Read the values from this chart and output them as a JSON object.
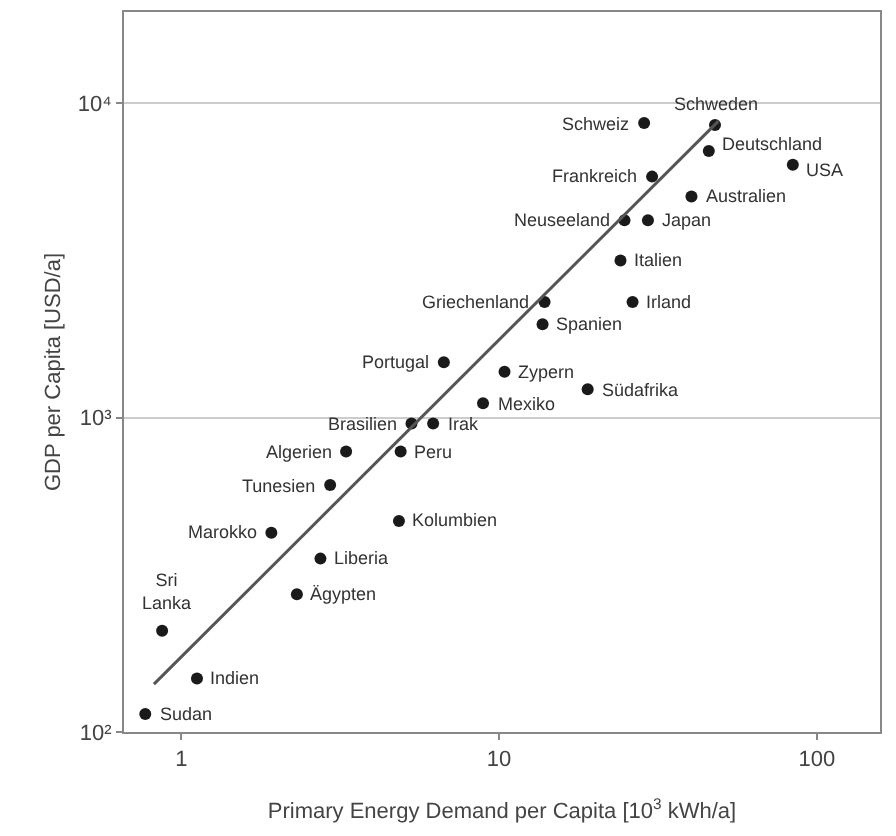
{
  "chart_data": {
    "type": "scatter",
    "xlabel": "Primary Energy Demand per Capita [10$^{3}$ kWh/a]",
    "ylabel": "GDP per Capita [USD/a]",
    "log": "xy",
    "grid": "y",
    "marker": "circle",
    "xlim": [
      0.66,
      158
    ],
    "xticks": [
      1,
      10,
      100
    ],
    "ylim": [
      100,
      19500
    ],
    "yticks": [
      {
        "value": 100,
        "label": "10²"
      },
      {
        "value": 1000,
        "label": "10³"
      },
      {
        "value": 10000,
        "label": "10⁴"
      }
    ],
    "series": [
      {
        "color": "#1a1a1a",
        "x": [
          47.8,
          28.6,
          45.7,
          84,
          30.3,
          40.3,
          24.8,
          29.4,
          24.1,
          26.3,
          13.9,
          13.7,
          6.7,
          10.4,
          19.0,
          8.9,
          5.3,
          6.2,
          3.3,
          4.9,
          2.94,
          4.84,
          1.92,
          2.74,
          2.31,
          0.87,
          1.12,
          0.77
        ],
        "values": [
          8520,
          8650,
          7050,
          6370,
          5840,
          5050,
          4240,
          4240,
          3160,
          2330,
          2330,
          1980,
          1500,
          1400,
          1230,
          1110,
          957,
          957,
          780,
          780,
          610,
          469,
          430,
          356,
          274,
          210,
          148,
          114
        ]
      },
      {
        "type": "line",
        "color": "#555555",
        "line_style": "solid",
        "marker": "none",
        "x": [
          0.82,
          49
        ],
        "values": [
          142,
          8770
        ]
      }
    ],
    "annotations": [
      {
        "text": "Schweden",
        "x": 47.8,
        "y": 8520
      },
      {
        "text": "Schweiz",
        "x": 28.6,
        "y": 8650
      },
      {
        "text": "Deutschland",
        "x": 45.7,
        "y": 7050
      },
      {
        "text": "USA",
        "x": 84,
        "y": 6370
      },
      {
        "text": "Frankreich",
        "x": 30.3,
        "y": 5840
      },
      {
        "text": "Australien",
        "x": 40.3,
        "y": 5050
      },
      {
        "text": "Neuseeland",
        "x": 24.8,
        "y": 4240
      },
      {
        "text": "Japan",
        "x": 29.4,
        "y": 4240
      },
      {
        "text": "Italien",
        "x": 24.1,
        "y": 3160
      },
      {
        "text": "Irland",
        "x": 26.3,
        "y": 2330
      },
      {
        "text": "Griechenland",
        "x": 13.9,
        "y": 2330
      },
      {
        "text": "Spanien",
        "x": 13.7,
        "y": 1980
      },
      {
        "text": "Portugal",
        "x": 6.7,
        "y": 1500
      },
      {
        "text": "Zypern",
        "x": 10.4,
        "y": 1400
      },
      {
        "text": "Südafrika",
        "x": 19.0,
        "y": 1230
      },
      {
        "text": "Mexiko",
        "x": 8.9,
        "y": 1110
      },
      {
        "text": "Brasilien",
        "x": 5.3,
        "y": 957
      },
      {
        "text": "Irak",
        "x": 6.2,
        "y": 957
      },
      {
        "text": "Algerien",
        "x": 3.3,
        "y": 780
      },
      {
        "text": "Peru",
        "x": 4.9,
        "y": 780
      },
      {
        "text": "Tunesien",
        "x": 2.94,
        "y": 610
      },
      {
        "text": "Kolumbien",
        "x": 4.84,
        "y": 469
      },
      {
        "text": "Marokko",
        "x": 1.92,
        "y": 430
      },
      {
        "text": "Liberia",
        "x": 2.74,
        "y": 356
      },
      {
        "text": "Ägypten",
        "x": 2.31,
        "y": 274
      },
      {
        "text": "Sri\nLanka",
        "x": 0.87,
        "y": 210
      },
      {
        "text": "Indien",
        "x": 1.12,
        "y": 148
      },
      {
        "text": "Sudan",
        "x": 0.77,
        "y": 114
      }
    ]
  }
}
